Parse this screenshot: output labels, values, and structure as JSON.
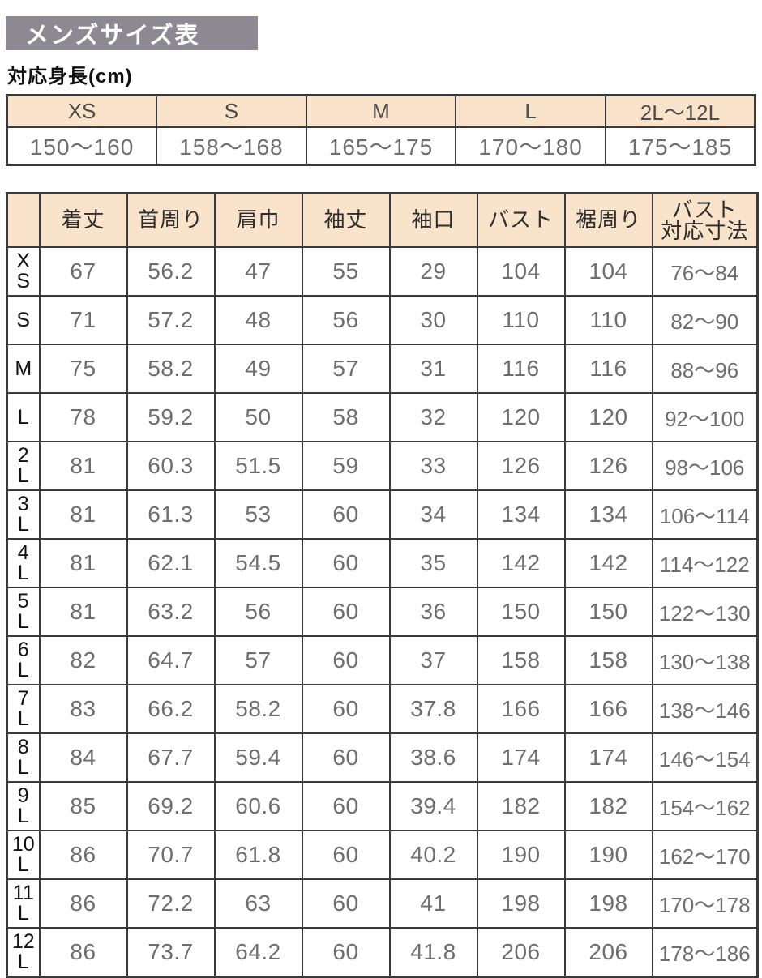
{
  "title": "メンズサイズ表",
  "colors": {
    "title_bar_bg": "#8d8993",
    "header_bg": "#f9e3ca",
    "border": "#3a3a3a",
    "value_text": "#6e6e6e"
  },
  "height_table": {
    "label": "対応身長(cm)",
    "columns": [
      {
        "size": "XS",
        "range": "150～160"
      },
      {
        "size": "S",
        "range": "158～168"
      },
      {
        "size": "M",
        "range": "165～175"
      },
      {
        "size": "L",
        "range": "170～180"
      },
      {
        "size": "2L～12L",
        "range": "175～185"
      }
    ]
  },
  "size_table": {
    "columns": [
      {
        "lines": [
          "着丈"
        ]
      },
      {
        "lines": [
          "首周り"
        ]
      },
      {
        "lines": [
          "肩巾"
        ]
      },
      {
        "lines": [
          "袖丈"
        ]
      },
      {
        "lines": [
          "袖口"
        ]
      },
      {
        "lines": [
          "バスト"
        ]
      },
      {
        "lines": [
          "裾周り"
        ]
      },
      {
        "lines": [
          "バスト",
          "対応寸法"
        ]
      }
    ],
    "rows": [
      {
        "size": "XS",
        "values": [
          "67",
          "56.2",
          "47",
          "55",
          "29",
          "104",
          "104",
          "76～84"
        ]
      },
      {
        "size": "S",
        "values": [
          "71",
          "57.2",
          "48",
          "56",
          "30",
          "110",
          "110",
          "82～90"
        ]
      },
      {
        "size": "M",
        "values": [
          "75",
          "58.2",
          "49",
          "57",
          "31",
          "116",
          "116",
          "88～96"
        ]
      },
      {
        "size": "L",
        "values": [
          "78",
          "59.2",
          "50",
          "58",
          "32",
          "120",
          "120",
          "92～100"
        ]
      },
      {
        "size": "2L",
        "values": [
          "81",
          "60.3",
          "51.5",
          "59",
          "33",
          "126",
          "126",
          "98～106"
        ]
      },
      {
        "size": "3L",
        "values": [
          "81",
          "61.3",
          "53",
          "60",
          "34",
          "134",
          "134",
          "106～114"
        ]
      },
      {
        "size": "4L",
        "values": [
          "81",
          "62.1",
          "54.5",
          "60",
          "35",
          "142",
          "142",
          "114～122"
        ]
      },
      {
        "size": "5L",
        "values": [
          "81",
          "63.2",
          "56",
          "60",
          "36",
          "150",
          "150",
          "122～130"
        ]
      },
      {
        "size": "6L",
        "values": [
          "82",
          "64.7",
          "57",
          "60",
          "37",
          "158",
          "158",
          "130～138"
        ]
      },
      {
        "size": "7L",
        "values": [
          "83",
          "66.2",
          "58.2",
          "60",
          "37.8",
          "166",
          "166",
          "138～146"
        ]
      },
      {
        "size": "8L",
        "values": [
          "84",
          "67.7",
          "59.4",
          "60",
          "38.6",
          "174",
          "174",
          "146～154"
        ]
      },
      {
        "size": "9L",
        "values": [
          "85",
          "69.2",
          "60.6",
          "60",
          "39.4",
          "182",
          "182",
          "154～162"
        ]
      },
      {
        "size": "10L",
        "values": [
          "86",
          "70.7",
          "61.8",
          "60",
          "40.2",
          "190",
          "190",
          "162～170"
        ]
      },
      {
        "size": "11L",
        "values": [
          "86",
          "72.2",
          "63",
          "60",
          "41",
          "198",
          "198",
          "170～178"
        ]
      },
      {
        "size": "12L",
        "values": [
          "86",
          "73.7",
          "64.2",
          "60",
          "41.8",
          "206",
          "206",
          "178～186"
        ]
      }
    ]
  }
}
